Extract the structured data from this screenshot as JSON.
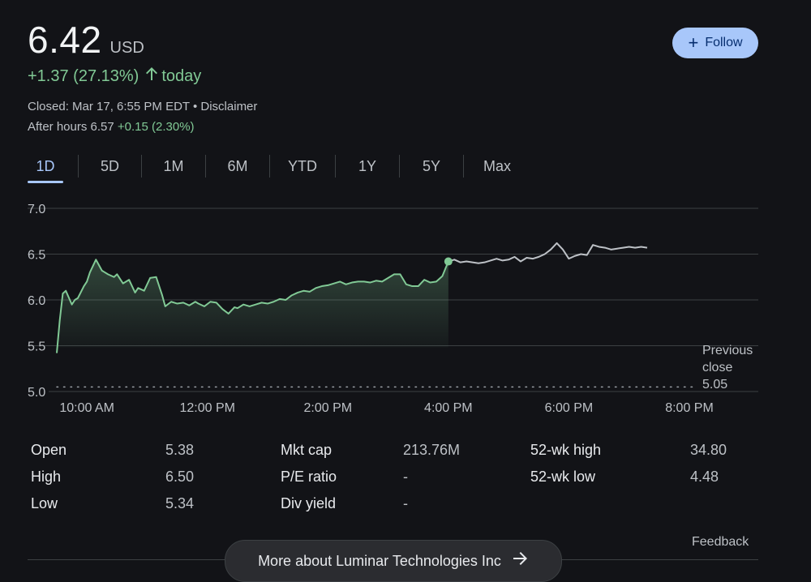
{
  "quote": {
    "price": "6.42",
    "currency": "USD",
    "change": "+1.37 (27.13%)",
    "change_suffix": "today",
    "closed_text": "Closed: Mar 17, 6:55 PM EDT • Disclaimer",
    "after_hours_label": "After hours 6.57",
    "after_hours_change": "+0.15 (2.30%)"
  },
  "follow_label": "Follow",
  "tabs": [
    "1D",
    "5D",
    "1M",
    "6M",
    "YTD",
    "1Y",
    "5Y",
    "Max"
  ],
  "active_tab": "1D",
  "previous_close": {
    "line1": "Previous",
    "line2": "close",
    "value": "5.05"
  },
  "chart_data": {
    "type": "line",
    "y_ticks": [
      "7.0",
      "6.5",
      "6.0",
      "5.5",
      "5.0"
    ],
    "ylim": [
      5.0,
      7.0
    ],
    "x_tick_labels": [
      "10:00 AM",
      "12:00 PM",
      "2:00 PM",
      "4:00 PM",
      "6:00 PM",
      "8:00 PM"
    ],
    "x_tick_hours": [
      10,
      12,
      14,
      16,
      18,
      20
    ],
    "xlim_hours": [
      9.5,
      20.0
    ],
    "previous_close": 5.05,
    "market_close_hour": 16.0,
    "regular_session": {
      "hours": [
        9.5,
        9.55,
        9.6,
        9.65,
        9.75,
        9.8,
        9.85,
        9.95,
        10.0,
        10.05,
        10.15,
        10.25,
        10.35,
        10.45,
        10.5,
        10.6,
        10.7,
        10.8,
        10.85,
        10.95,
        11.05,
        11.15,
        11.25,
        11.3,
        11.4,
        11.5,
        11.6,
        11.7,
        11.8,
        11.85,
        11.95,
        12.05,
        12.15,
        12.25,
        12.35,
        12.45,
        12.5,
        12.6,
        12.7,
        12.8,
        12.9,
        13.0,
        13.1,
        13.2,
        13.3,
        13.4,
        13.5,
        13.6,
        13.7,
        13.8,
        13.9,
        14.0,
        14.1,
        14.2,
        14.3,
        14.4,
        14.5,
        14.6,
        14.7,
        14.8,
        14.9,
        15.0,
        15.1,
        15.2,
        15.3,
        15.4,
        15.5,
        15.6,
        15.7,
        15.8,
        15.9,
        16.0
      ],
      "values": [
        5.42,
        5.78,
        6.07,
        6.1,
        5.95,
        6.0,
        6.02,
        6.15,
        6.2,
        6.3,
        6.44,
        6.32,
        6.28,
        6.25,
        6.28,
        6.18,
        6.22,
        6.08,
        6.13,
        6.1,
        6.24,
        6.25,
        6.05,
        5.93,
        5.98,
        5.96,
        5.97,
        5.94,
        5.98,
        5.96,
        5.93,
        5.98,
        5.97,
        5.9,
        5.85,
        5.92,
        5.91,
        5.95,
        5.93,
        5.95,
        5.97,
        5.96,
        5.98,
        6.01,
        6.0,
        6.05,
        6.08,
        6.1,
        6.09,
        6.13,
        6.15,
        6.16,
        6.18,
        6.2,
        6.17,
        6.19,
        6.2,
        6.2,
        6.19,
        6.21,
        6.2,
        6.24,
        6.28,
        6.28,
        6.17,
        6.15,
        6.15,
        6.22,
        6.19,
        6.2,
        6.26,
        6.42
      ]
    },
    "after_hours": {
      "hours": [
        16.0,
        16.1,
        16.2,
        16.3,
        16.4,
        16.5,
        16.6,
        16.7,
        16.8,
        16.9,
        17.0,
        17.1,
        17.2,
        17.3,
        17.4,
        17.5,
        17.6,
        17.7,
        17.8,
        17.9,
        18.0,
        18.1,
        18.2,
        18.3,
        18.4,
        18.5,
        18.6,
        18.7,
        18.8,
        18.9,
        19.0,
        19.1,
        19.2,
        19.3
      ],
      "values": [
        6.42,
        6.44,
        6.41,
        6.42,
        6.41,
        6.4,
        6.41,
        6.43,
        6.45,
        6.43,
        6.44,
        6.47,
        6.42,
        6.46,
        6.45,
        6.47,
        6.5,
        6.55,
        6.62,
        6.55,
        6.45,
        6.48,
        6.5,
        6.49,
        6.6,
        6.58,
        6.57,
        6.55,
        6.56,
        6.57,
        6.58,
        6.57,
        6.58,
        6.57
      ]
    }
  },
  "stats": [
    [
      {
        "label": "Open",
        "value": "5.38"
      },
      {
        "label": "Mkt cap",
        "value": "213.76M"
      },
      {
        "label": "52-wk high",
        "value": "34.80"
      }
    ],
    [
      {
        "label": "High",
        "value": "6.50"
      },
      {
        "label": "P/E ratio",
        "value": "-"
      },
      {
        "label": "52-wk low",
        "value": "4.48"
      }
    ],
    [
      {
        "label": "Low",
        "value": "5.34"
      },
      {
        "label": "Div yield",
        "value": "-"
      }
    ]
  ],
  "feedback_label": "Feedback",
  "more_about_label": "More about Luminar Technologies Inc",
  "colors": {
    "up": "#81c995",
    "after_hours_line": "#bdc1c6",
    "accent": "#a8c7fa"
  }
}
